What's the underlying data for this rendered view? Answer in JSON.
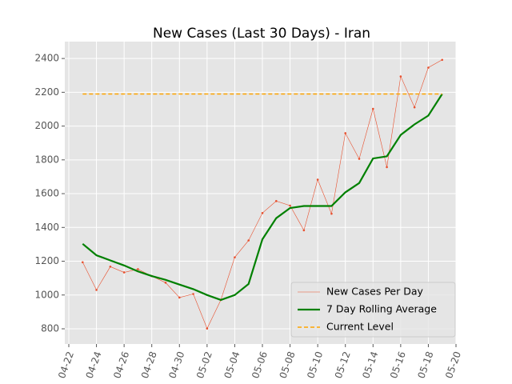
{
  "chart_data": {
    "type": "line",
    "title": "New Cases (Last 30 Days) - Iran",
    "x": [
      "04-23",
      "04-24",
      "04-25",
      "04-26",
      "04-27",
      "04-28",
      "04-29",
      "04-30",
      "05-01",
      "05-02",
      "05-03",
      "05-04",
      "05-05",
      "05-06",
      "05-07",
      "05-08",
      "05-09",
      "05-10",
      "05-11",
      "05-12",
      "05-13",
      "05-14",
      "05-15",
      "05-16",
      "05-17",
      "05-18",
      "05-19"
    ],
    "series": [
      {
        "name": "New Cases Per Day",
        "color": "#e8502e",
        "style": "thin-marker",
        "values": [
          1194,
          1030,
          1168,
          1134,
          1153,
          1112,
          1073,
          985,
          1006,
          802,
          971,
          1223,
          1323,
          1485,
          1556,
          1529,
          1383,
          1683,
          1481,
          1958,
          1806,
          2102,
          1757,
          2294,
          2111,
          2346,
          2392
        ]
      },
      {
        "name": "7 Day Rolling Average",
        "color": "#008000",
        "style": "thick",
        "values": [
          1303,
          1235,
          1205,
          1175,
          1140,
          1112,
          1090,
          1062,
          1035,
          1000,
          971,
          1000,
          1065,
          1330,
          1455,
          1515,
          1527,
          1527,
          1527,
          1608,
          1663,
          1808,
          1821,
          1948,
          2010,
          2062,
          2190
        ]
      },
      {
        "name": "Current Level",
        "color": "#ffa500",
        "style": "dashed",
        "values": [
          2190,
          2190,
          2190,
          2190,
          2190,
          2190,
          2190,
          2190,
          2190,
          2190,
          2190,
          2190,
          2190,
          2190,
          2190,
          2190,
          2190,
          2190,
          2190,
          2190,
          2190,
          2190,
          2190,
          2190,
          2190,
          2190,
          2190
        ]
      }
    ],
    "xlim": [
      "04-22",
      "05-20"
    ],
    "xticks": [
      "04-22",
      "04-24",
      "04-26",
      "04-28",
      "04-30",
      "05-02",
      "05-04",
      "05-06",
      "05-08",
      "05-10",
      "05-12",
      "05-14",
      "05-16",
      "05-18",
      "05-20"
    ],
    "ylim": [
      710,
      2500
    ],
    "yticks": [
      800,
      1000,
      1200,
      1400,
      1600,
      1800,
      2000,
      2200,
      2400
    ],
    "grid": true,
    "legend": "lower right"
  }
}
